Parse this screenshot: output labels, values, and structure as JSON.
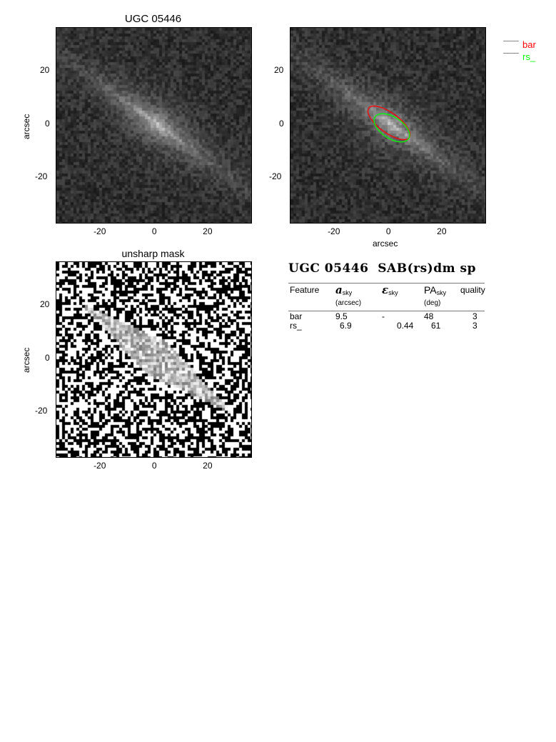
{
  "panels": [
    {
      "title": "UGC 05446",
      "ylabel": "arcsec",
      "xlabel": ""
    },
    {
      "title": "",
      "ylabel": "",
      "xlabel": "arcsec"
    },
    {
      "title": "unsharp mask",
      "ylabel": "arcsec",
      "xlabel": ""
    }
  ],
  "axes": {
    "xlim": [
      -37,
      36
    ],
    "ylim": [
      -37,
      36
    ],
    "xticks": [
      "-20",
      "0",
      "20"
    ],
    "yticks": [
      "20",
      "0",
      "-20"
    ]
  },
  "legend": [
    {
      "label": "bar",
      "color": "#ff0000"
    },
    {
      "label": "rs_",
      "color": "#00ff00"
    }
  ],
  "heading": "UGC 05446  SAB(rs)dm sp",
  "table": {
    "headers": [
      {
        "main": "Feature"
      },
      {
        "main": "a",
        "sub": "sky",
        "unit": "(arcsec)"
      },
      {
        "main": "ε",
        "sub": "sky"
      },
      {
        "main": "PA",
        "sub": "sky",
        "unit": "(deg)"
      },
      {
        "main": "quality"
      }
    ],
    "rows": [
      [
        "bar",
        "9.5",
        "-",
        "48",
        "3"
      ],
      [
        "rs_",
        "6.9",
        "0.44",
        "61",
        "3"
      ]
    ]
  },
  "chart_data": {
    "type": "image",
    "ellipses": [
      {
        "name": "bar",
        "a": 9.5,
        "pa": 48,
        "color": "#ff0000"
      },
      {
        "name": "rs_",
        "a": 6.9,
        "eps": 0.44,
        "pa": 61,
        "color": "#00ff00"
      }
    ]
  }
}
